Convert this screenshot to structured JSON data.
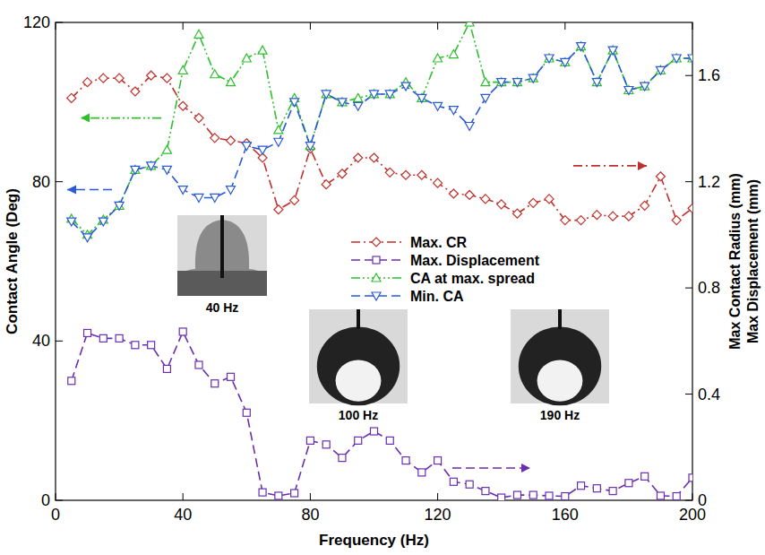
{
  "chart_data": {
    "type": "line",
    "x_label": "Frequency (Hz)",
    "y_label": "Contact Angle (Deg)",
    "y2_label": [
      "Max Contact Radius (mm)",
      "Max Displacement (mm)"
    ],
    "x": [
      5,
      10,
      15,
      20,
      25,
      30,
      35,
      40,
      45,
      50,
      55,
      60,
      65,
      70,
      75,
      80,
      85,
      90,
      95,
      100,
      105,
      110,
      115,
      120,
      125,
      130,
      135,
      140,
      145,
      150,
      155,
      160,
      165,
      170,
      175,
      180,
      185,
      190,
      195,
      200
    ],
    "xlim": [
      0,
      200
    ],
    "xticks": [
      0,
      40,
      80,
      120,
      160,
      200
    ],
    "ylim": [
      0,
      120
    ],
    "yticks": [
      0,
      40,
      80,
      120
    ],
    "y2lim": [
      0,
      1.8
    ],
    "y2ticks": [
      0,
      0.4,
      0.8,
      1.2,
      1.6
    ],
    "legend": "center",
    "grid": false,
    "series": [
      {
        "name": "Max. CR",
        "color": "#c0302a",
        "axis": "y2",
        "marker": "diamond",
        "line_style": "dash_dot",
        "values": [
          1.515,
          1.575,
          1.59,
          1.59,
          1.54,
          1.6,
          1.59,
          1.485,
          1.44,
          1.365,
          1.355,
          1.345,
          1.29,
          1.095,
          1.13,
          1.325,
          1.19,
          1.23,
          1.29,
          1.29,
          1.235,
          1.225,
          1.225,
          1.195,
          1.155,
          1.15,
          1.135,
          1.115,
          1.08,
          1.12,
          1.135,
          1.055,
          1.055,
          1.075,
          1.07,
          1.07,
          1.11,
          1.22,
          1.055,
          1.1
        ]
      },
      {
        "name": "Max. Displacement",
        "color": "#6a2fb0",
        "axis": "y2",
        "marker": "square",
        "line_style": "dashed",
        "values": [
          0.45,
          0.63,
          0.61,
          0.61,
          0.585,
          0.585,
          0.495,
          0.635,
          0.51,
          0.44,
          0.465,
          0.33,
          0.03,
          0.017,
          0.027,
          0.225,
          0.21,
          0.16,
          0.225,
          0.26,
          0.225,
          0.15,
          0.105,
          0.15,
          0.07,
          0.06,
          0.035,
          0.01,
          0.02,
          0.02,
          0.017,
          0.015,
          0.055,
          0.045,
          0.035,
          0.065,
          0.09,
          0.017,
          0.015,
          0.085
        ]
      },
      {
        "name": "CA at max. spread",
        "color": "#2fbf2f",
        "axis": "y",
        "marker": "triangle",
        "line_style": "dash_dot_dot",
        "values": [
          70.7,
          66.7,
          70.5,
          74,
          83,
          84,
          88,
          108,
          117,
          107,
          105,
          111,
          113,
          93,
          101,
          89,
          102,
          100,
          101,
          102,
          102,
          105,
          101,
          111,
          112,
          120,
          105,
          105,
          105,
          106,
          111,
          110,
          114,
          105,
          113,
          103,
          104,
          108,
          111,
          111
        ]
      },
      {
        "name": "Min. CA",
        "color": "#2a5ad8",
        "axis": "y",
        "marker": "triangle_down",
        "line_style": "dashed",
        "values": [
          70,
          66,
          70,
          74,
          83,
          84,
          83,
          78,
          76,
          76,
          78,
          89,
          88,
          90,
          100,
          89,
          102,
          100,
          99,
          102,
          102,
          104,
          101,
          99,
          98,
          94,
          101,
          105,
          105,
          106,
          111,
          110,
          114,
          105,
          113,
          103,
          104,
          108,
          111,
          111
        ]
      }
    ],
    "annotations": [
      "40 Hz",
      "100 Hz",
      "190 Hz"
    ]
  }
}
